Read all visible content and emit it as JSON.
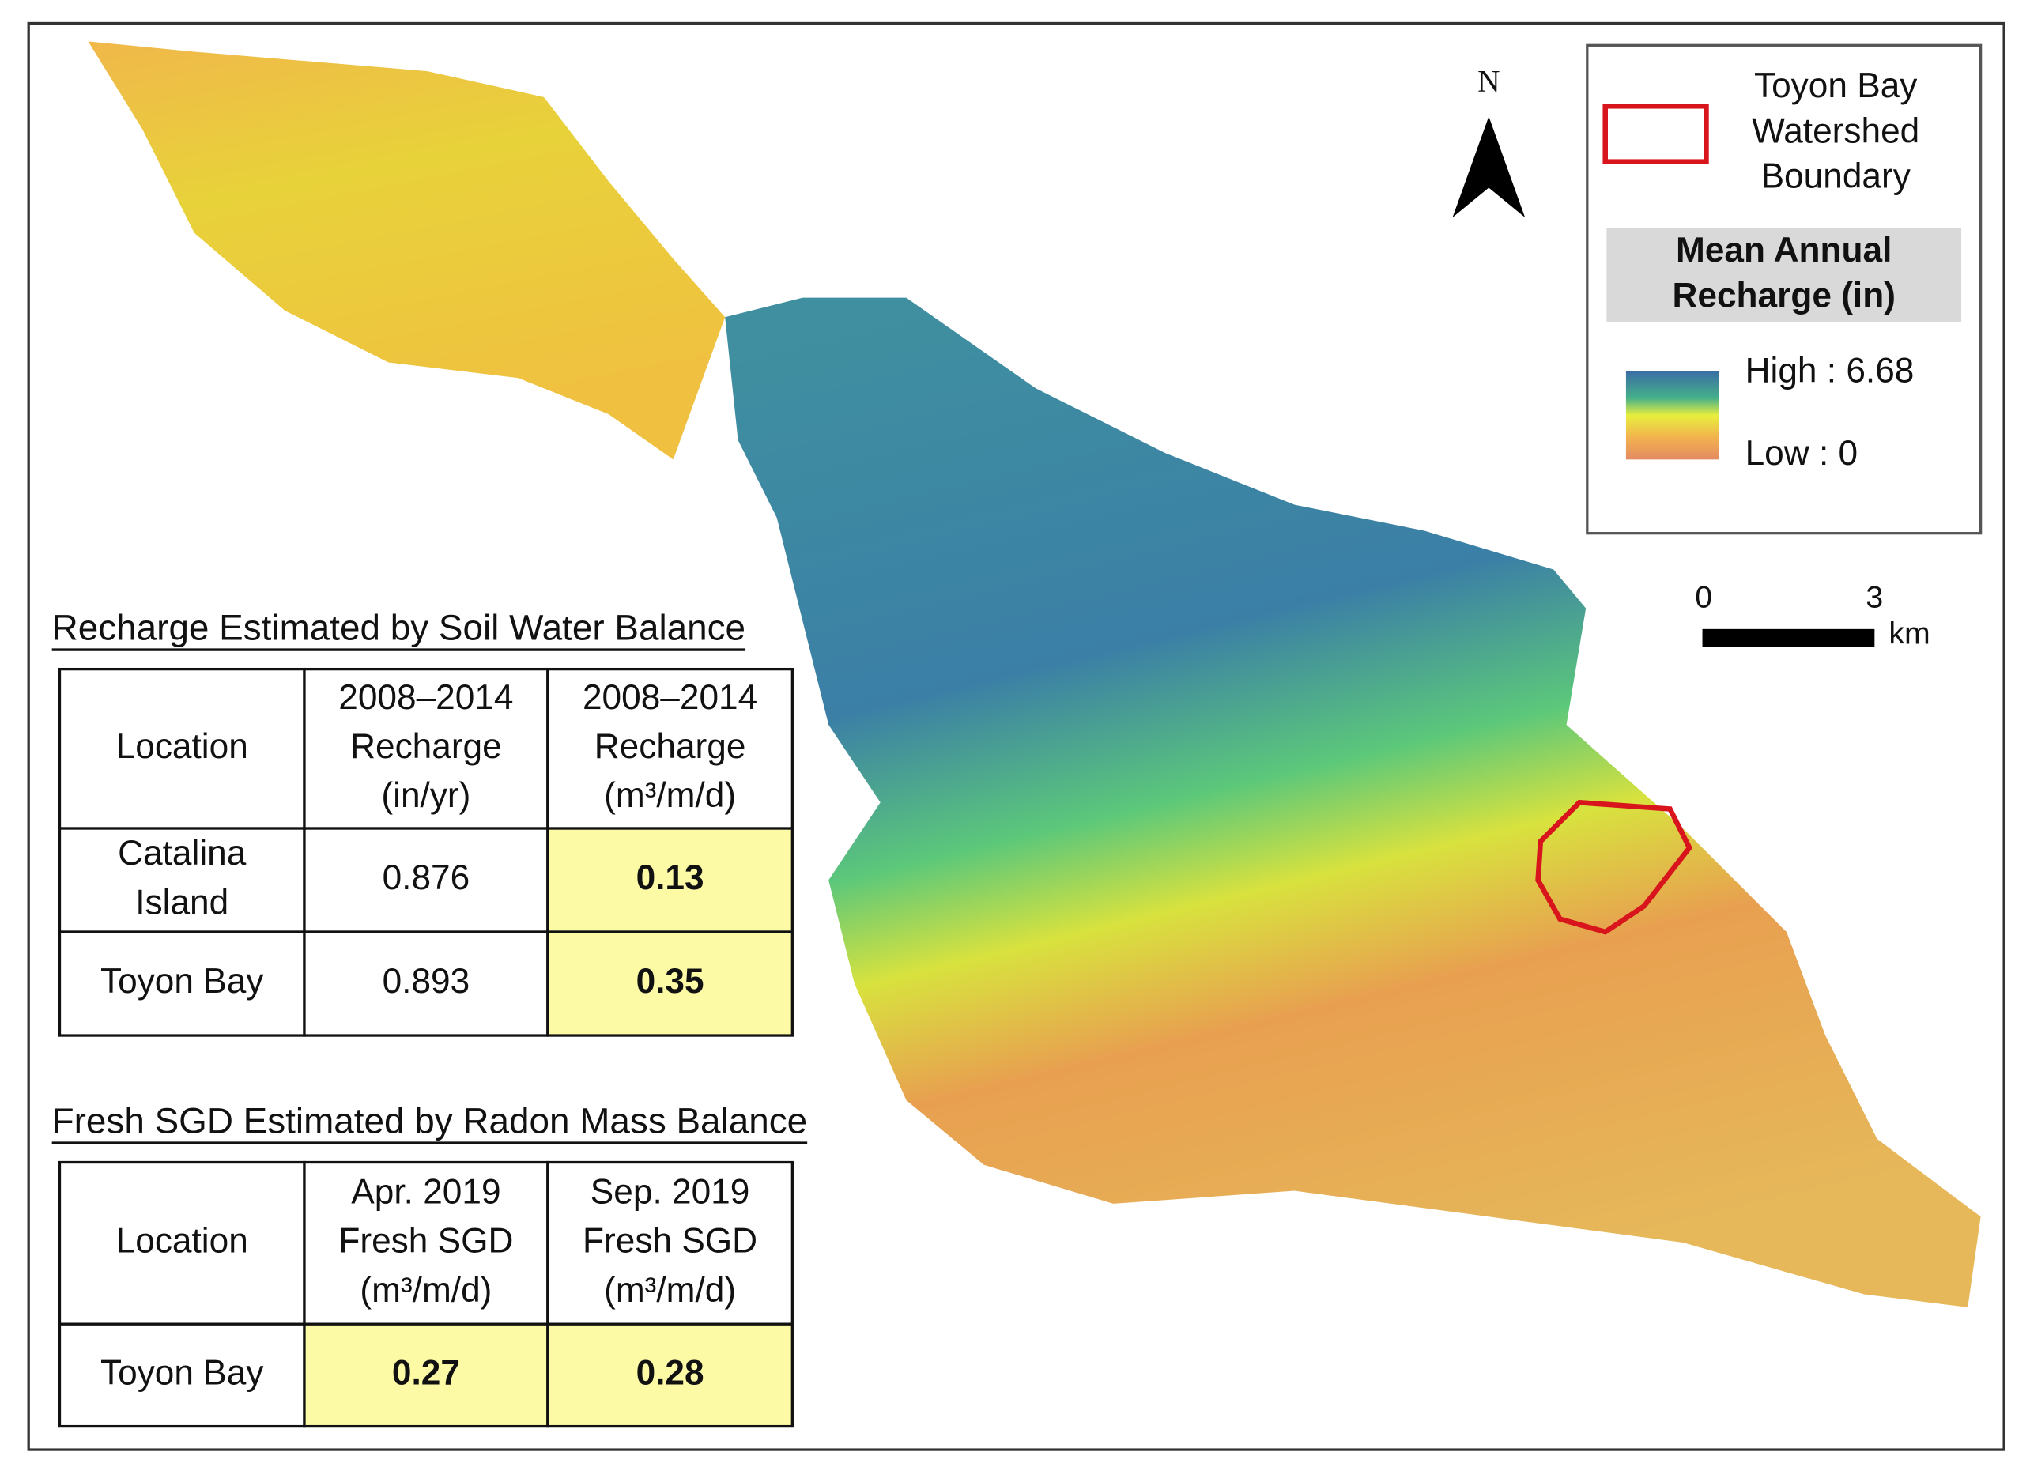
{
  "legend": {
    "boundary": [
      "Toyon Bay",
      "Watershed",
      "Boundary"
    ],
    "recharge_title": [
      "Mean Annual",
      "Recharge (in)"
    ],
    "high": "High : 6.68",
    "low": "Low : 0"
  },
  "north": "N",
  "scale_bar": {
    "start": "0",
    "end": "3",
    "unit": "km"
  },
  "tables": [
    {
      "title": "Recharge Estimated by Soil Water Balance",
      "header": [
        [
          "Location"
        ],
        [
          "2008–2014",
          "Recharge",
          "(in/yr)"
        ],
        [
          "2008–2014",
          "Recharge",
          "(m³/m/d)"
        ]
      ],
      "rows": [
        [
          [
            "Catalina",
            "Island"
          ],
          [
            "0.876"
          ],
          [
            "0.13"
          ]
        ],
        [
          [
            "Toyon Bay"
          ],
          [
            "0.893"
          ],
          [
            "0.35"
          ]
        ]
      ]
    },
    {
      "title": "Fresh SGD Estimated by Radon Mass Balance",
      "header": [
        [
          "Location"
        ],
        [
          "Apr. 2019",
          "Fresh SGD",
          "(m³/m/d)"
        ],
        [
          "Sep. 2019",
          "Fresh SGD",
          "(m³/m/d)"
        ]
      ],
      "rows": [
        [
          [
            "Toyon Bay"
          ],
          [
            "0.27"
          ],
          [
            "0.28"
          ]
        ]
      ]
    }
  ]
}
